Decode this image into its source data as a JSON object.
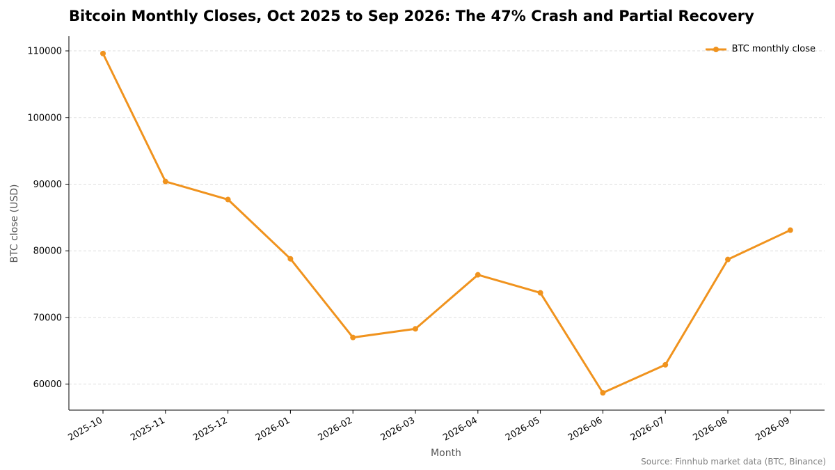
{
  "chart_data": {
    "type": "line",
    "title": "Bitcoin Monthly Closes, Oct 2025 to Sep 2026: The 47% Crash and Partial Recovery",
    "xlabel": "Month",
    "ylabel": "BTC close (USD)",
    "source": "Source: Finnhub market data (BTC, Binance)",
    "categories": [
      "2025-10",
      "2025-11",
      "2025-12",
      "2026-01",
      "2026-02",
      "2026-03",
      "2026-04",
      "2026-05",
      "2026-06",
      "2026-07",
      "2026-08",
      "2026-09"
    ],
    "series": [
      {
        "name": "BTC monthly close",
        "color": "#f0931e",
        "values": [
          109600,
          90400,
          87700,
          78800,
          67000,
          68300,
          76400,
          73700,
          58700,
          62900,
          78700,
          83100
        ]
      }
    ],
    "ylim": [
      56100,
      112200
    ],
    "yticks": [
      60000,
      70000,
      80000,
      90000,
      100000,
      110000
    ],
    "grid": "horizontal-dashed",
    "legend_position": "top-right"
  }
}
